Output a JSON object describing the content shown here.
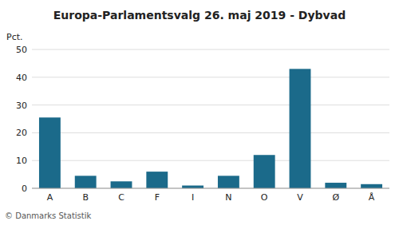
{
  "chart_data": {
    "type": "bar",
    "title": "Europa-Parlamentsvalg 26. maj 2019 - Dybvad",
    "ylabel": "Pct.",
    "annotations": [
      "© Danmarks Statistik"
    ],
    "categories": [
      "A",
      "B",
      "C",
      "F",
      "I",
      "N",
      "O",
      "V",
      "Ø",
      "Å"
    ],
    "values": [
      25.5,
      4.5,
      2.5,
      6.0,
      1.0,
      4.5,
      12.0,
      43.0,
      2.0,
      1.5
    ],
    "color": "#1b6a8a",
    "ylim": [
      0,
      50
    ],
    "yticks": [
      0,
      10,
      20,
      30,
      40,
      50
    ],
    "grid": true
  }
}
